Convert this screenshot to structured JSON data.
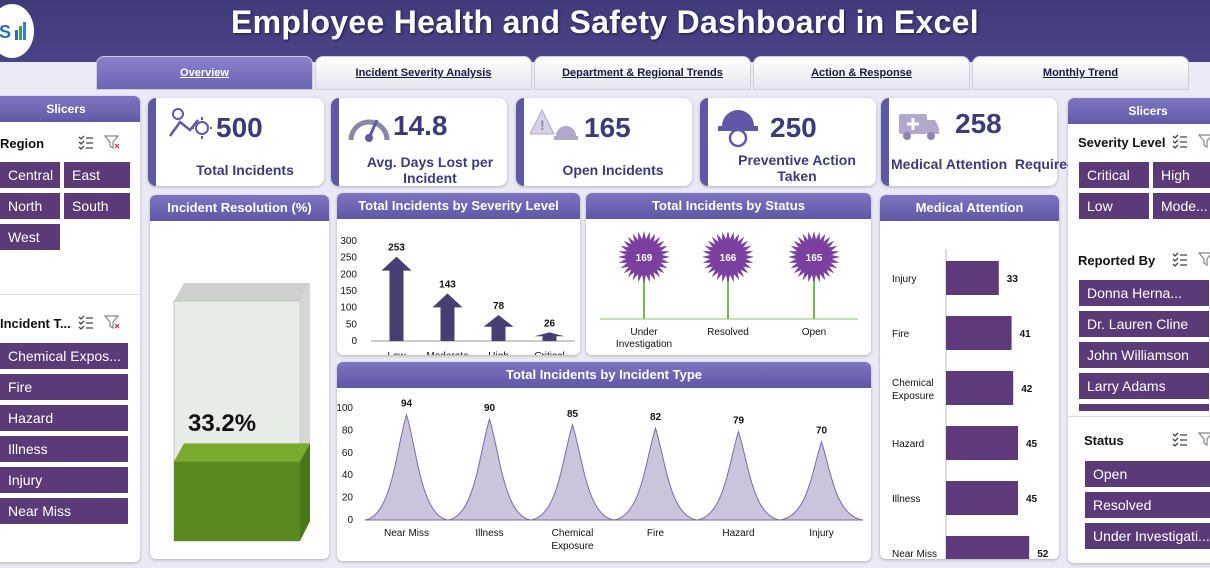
{
  "header": {
    "title": "Employee Health and Safety Dashboard in Excel"
  },
  "tabs": [
    {
      "label": "Overview",
      "active": true
    },
    {
      "label": "Incident Severity Analysis"
    },
    {
      "label": "Department & Regional Trends"
    },
    {
      "label": "Action & Response"
    },
    {
      "label": "Monthly Trend"
    }
  ],
  "left_slicers": {
    "header": "Slicers",
    "region": {
      "title": "Region",
      "items": [
        "Central",
        "East",
        "North",
        "South",
        "West"
      ]
    },
    "incident_type": {
      "title": "Incident T...",
      "items": [
        "Chemical Expos...",
        "Fire",
        "Hazard",
        "Illness",
        "Injury",
        "Near Miss"
      ]
    }
  },
  "kpis": {
    "total_incidents": {
      "value": "500",
      "label": "Total Incidents",
      "icon": "injured-person-icon"
    },
    "avg_days_lost": {
      "value": "14.8",
      "label": "Avg. Days Lost per Incident",
      "icon": "gauge-icon"
    },
    "open_incidents": {
      "value": "165",
      "label": "Open Incidents",
      "icon": "alarm-icon"
    },
    "preventive_action": {
      "value": "250",
      "label": "Preventive Action Taken",
      "icon": "hard-hat-icon"
    },
    "medical_attention": {
      "value": "258",
      "label": "Medical Attention  Required",
      "icon": "ambulance-icon"
    }
  },
  "resolution": {
    "title": "Incident Resolution  (%)",
    "value_text": "33.2%",
    "value": 0.332
  },
  "right_slicers": {
    "header": "Slicers",
    "severity": {
      "title": "Severity Level",
      "items": [
        "Critical",
        "High",
        "Low",
        "Mode..."
      ]
    },
    "reported_by": {
      "title": "Reported By",
      "items": [
        "Donna Herna...",
        "Dr. Lauren Cline",
        "John Williamson",
        "Larry Adams"
      ]
    },
    "status": {
      "title": "Status",
      "items": [
        "Open",
        "Resolved",
        "Under Investigati..."
      ]
    }
  },
  "colors": {
    "accent": "#5f58a6",
    "slicer_button": "#5b3a78",
    "bar": "#5e3a7a",
    "arrow": "#463f72",
    "type_fill": "#cbc4dc",
    "status_burst": "#7b3fa0",
    "stem": "#6cc04a",
    "green": "#5a8a1f"
  },
  "chart_data": [
    {
      "type": "bar",
      "title": "Total Incidents by Severity Level",
      "categories": [
        "Low",
        "Moderate",
        "High",
        "Critical"
      ],
      "values": [
        253,
        143,
        78,
        26
      ],
      "ylim": [
        0,
        300
      ],
      "yticks": [
        "300",
        "250",
        "200",
        "150",
        "100",
        "50",
        "0"
      ]
    },
    {
      "type": "scatter",
      "title": "Total Incidents by Status",
      "categories": [
        "Under Investigation",
        "Resolved",
        "Open"
      ],
      "values": [
        169,
        166,
        165
      ]
    },
    {
      "type": "area",
      "title": "Total Incidents by Incident Type",
      "categories": [
        "Near Miss",
        "Illness",
        "Chemical Exposure",
        "Fire",
        "Hazard",
        "Injury"
      ],
      "values": [
        94,
        90,
        85,
        82,
        79,
        70
      ],
      "ylim": [
        0,
        100
      ],
      "yticks": [
        "100",
        "80",
        "60",
        "40",
        "20",
        "0"
      ]
    },
    {
      "type": "bar",
      "title": "Medical Attention",
      "categories": [
        "Injury",
        "Fire",
        "Chemical Exposure",
        "Hazard",
        "Illness",
        "Near Miss"
      ],
      "values": [
        33,
        41,
        42,
        45,
        45,
        52
      ]
    }
  ]
}
